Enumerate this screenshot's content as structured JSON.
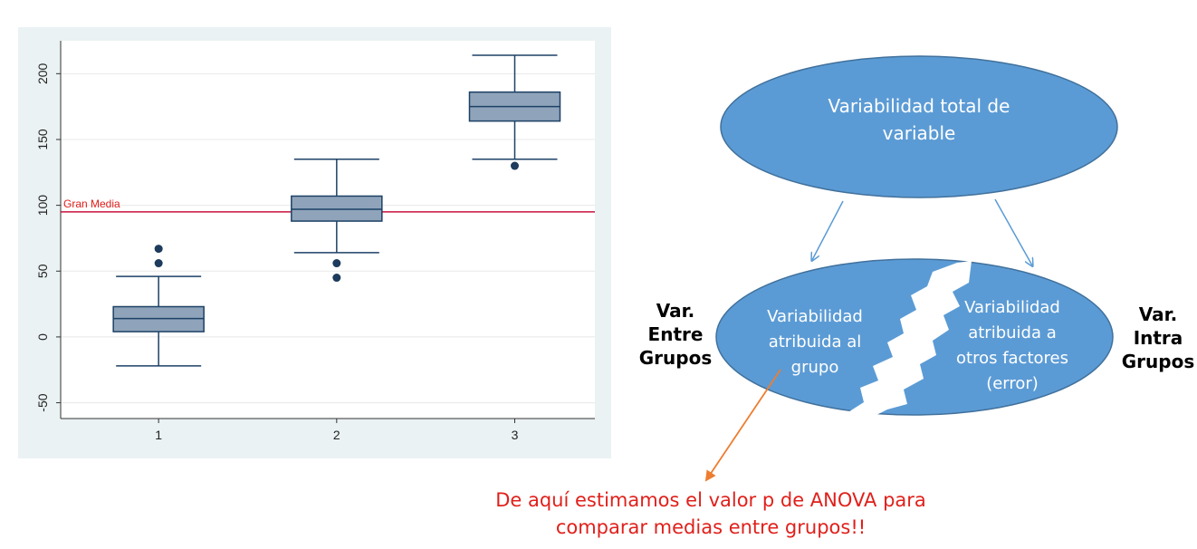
{
  "chart_data": {
    "type": "boxplot",
    "categories": [
      "1",
      "2",
      "3"
    ],
    "ylim": [
      -62,
      225
    ],
    "xlim": [
      0.45,
      3.45
    ],
    "yticks": [
      "200",
      "150",
      "100",
      "50",
      "0",
      "-50"
    ],
    "ytick_values": [
      200,
      150,
      100,
      50,
      0,
      -50
    ],
    "grid": true,
    "boxes": [
      {
        "category": "1",
        "whisker_low": -22,
        "q1": 4,
        "median": 14,
        "q3": 23,
        "whisker_high": 46,
        "outliers": [
          56,
          67
        ]
      },
      {
        "category": "2",
        "whisker_low": 64,
        "q1": 88,
        "median": 97,
        "q3": 107,
        "whisker_high": 135,
        "outliers": [
          56,
          45
        ]
      },
      {
        "category": "3",
        "whisker_low": 135,
        "q1": 164,
        "median": 175,
        "q3": 186,
        "whisker_high": 214,
        "outliers": [
          130
        ]
      }
    ],
    "reference_line": {
      "value": 95,
      "label": "Gran Media",
      "color": "#c8123c"
    },
    "colors": {
      "box_fill": "#8fa4ba",
      "box_stroke": "#1d4166",
      "outlier": "#1d3b5c",
      "grid": "#e8e8e8",
      "plot_background": "#eaf2f3"
    }
  },
  "diagram": {
    "top_ellipse": [
      "Variabilidad total de",
      "variable"
    ],
    "left_part": [
      "Variabilidad",
      "atribuida al",
      "grupo"
    ],
    "right_part": [
      "Variabilidad",
      "atribuida a",
      "otros factores",
      "(error)"
    ],
    "left_label": [
      "Var.",
      "Entre",
      "Grupos"
    ],
    "right_label": [
      "Var.",
      "Intra",
      "Grupos"
    ],
    "note": [
      "De aquí estimamos el valor p de ANOVA para",
      "comparar medias entre grupos!!"
    ],
    "colors": {
      "ellipse_fill": "#5b9bd5",
      "ellipse_stroke": "#41719c",
      "arrow": "#5b9bd5",
      "note_arrow": "#ed7d31",
      "note_text": "#e0201b"
    }
  }
}
